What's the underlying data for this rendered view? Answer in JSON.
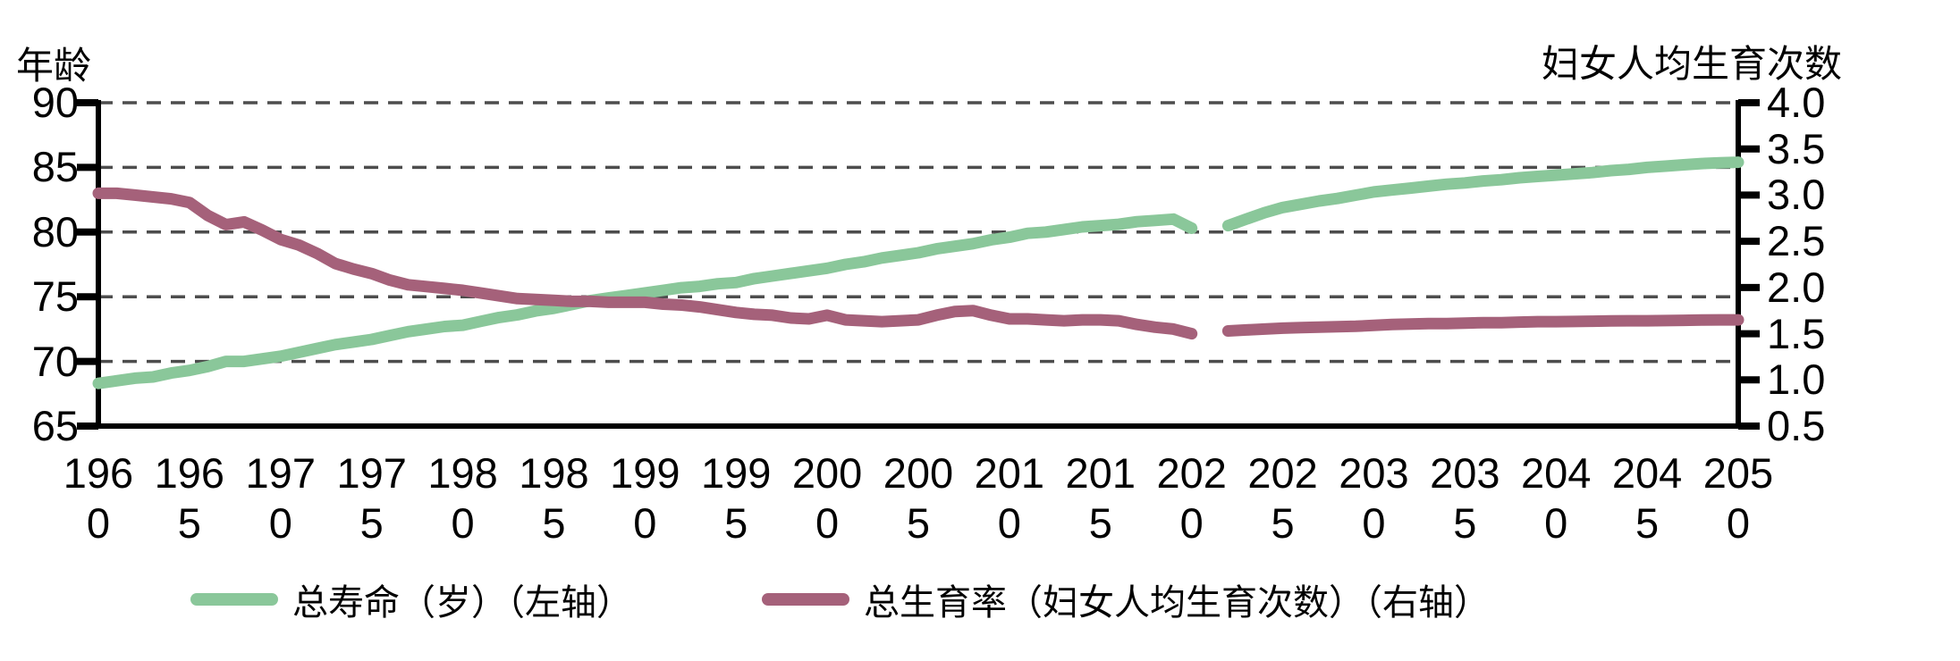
{
  "axes": {
    "left_title": "年龄",
    "right_title": "妇女人均生育次数",
    "left_tick_labels": [
      "90",
      "85",
      "80",
      "75",
      "70",
      "65"
    ],
    "right_tick_labels": [
      "4.0",
      "3.5",
      "3.0",
      "2.5",
      "2.0",
      "1.5",
      "1.0",
      "0.5"
    ],
    "x_tick_labels": [
      "1960",
      "1965",
      "1970",
      "1975",
      "1980",
      "1985",
      "1990",
      "1995",
      "2000",
      "2005",
      "2010",
      "2015",
      "2020",
      "2025",
      "2030",
      "2035",
      "2040",
      "2045",
      "2050"
    ]
  },
  "legend": {
    "items": [
      {
        "id": "life-expectancy",
        "label": "总寿命（岁）（左轴）",
        "color": "#8AC79A"
      },
      {
        "id": "fertility-rate",
        "label": "总生育率（妇女人均生育次数）（右轴）",
        "color": "#A5617A"
      }
    ]
  },
  "colors": {
    "green_series": "#8AC79A",
    "maroon_series": "#A5617A",
    "gridline": "#4d4d4d",
    "axis": "#000000",
    "text": "#000000"
  },
  "chart_data": {
    "type": "line",
    "x_axis": {
      "range": [
        1960,
        2050
      ],
      "tick_step": 5,
      "tick_labels_wrapped": true
    },
    "left_axis": {
      "label": "年龄",
      "range": [
        65,
        90
      ],
      "ticks": [
        90,
        85,
        80,
        75,
        70,
        65
      ]
    },
    "right_axis": {
      "label": "妇女人均生育次数",
      "range": [
        0.5,
        4.0
      ],
      "ticks": [
        4.0,
        3.5,
        3.0,
        2.5,
        2.0,
        1.5,
        1.0,
        0.5
      ]
    },
    "grid": "horizontal-dashed",
    "legend_position": "bottom",
    "gap_years": [
      2021
    ],
    "x": [
      1960,
      1961,
      1962,
      1963,
      1964,
      1965,
      1966,
      1967,
      1968,
      1969,
      1970,
      1971,
      1972,
      1973,
      1974,
      1975,
      1976,
      1977,
      1978,
      1979,
      1980,
      1981,
      1982,
      1983,
      1984,
      1985,
      1986,
      1987,
      1988,
      1989,
      1990,
      1991,
      1992,
      1993,
      1994,
      1995,
      1996,
      1997,
      1998,
      1999,
      2000,
      2001,
      2002,
      2003,
      2004,
      2005,
      2006,
      2007,
      2008,
      2009,
      2010,
      2011,
      2012,
      2013,
      2014,
      2015,
      2016,
      2017,
      2018,
      2019,
      2020,
      2021,
      2022,
      2023,
      2024,
      2025,
      2026,
      2027,
      2028,
      2029,
      2030,
      2031,
      2032,
      2033,
      2034,
      2035,
      2036,
      2037,
      2038,
      2039,
      2040,
      2041,
      2042,
      2043,
      2044,
      2045,
      2046,
      2047,
      2048,
      2049,
      2050
    ],
    "series": [
      {
        "name": "总寿命（岁）（左轴）",
        "axis": "left",
        "color": "#8AC79A",
        "values": [
          68.3,
          68.5,
          68.7,
          68.8,
          69.1,
          69.3,
          69.6,
          70.0,
          70.0,
          70.2,
          70.4,
          70.7,
          71.0,
          71.3,
          71.5,
          71.7,
          72.0,
          72.3,
          72.5,
          72.7,
          72.8,
          73.1,
          73.4,
          73.6,
          73.9,
          74.1,
          74.4,
          74.7,
          74.9,
          75.1,
          75.3,
          75.5,
          75.7,
          75.8,
          76.0,
          76.1,
          76.4,
          76.6,
          76.8,
          77.0,
          77.2,
          77.5,
          77.7,
          78.0,
          78.2,
          78.4,
          78.7,
          78.9,
          79.1,
          79.4,
          79.6,
          79.9,
          80.0,
          80.2,
          80.4,
          80.5,
          80.6,
          80.8,
          80.9,
          81.0,
          80.3,
          null,
          80.5,
          81.0,
          81.5,
          81.9,
          82.15,
          82.4,
          82.6,
          82.85,
          83.1,
          83.25,
          83.4,
          83.55,
          83.7,
          83.8,
          83.95,
          84.05,
          84.2,
          84.3,
          84.4,
          84.5,
          84.6,
          84.75,
          84.85,
          85.0,
          85.1,
          85.2,
          85.3,
          85.35,
          85.4
        ]
      },
      {
        "name": "总生育率（妇女人均生育次数）（右轴）",
        "axis": "right",
        "color": "#A5617A",
        "values": [
          3.02,
          3.02,
          3.0,
          2.98,
          2.96,
          2.92,
          2.78,
          2.68,
          2.71,
          2.62,
          2.52,
          2.46,
          2.37,
          2.26,
          2.2,
          2.15,
          2.08,
          2.03,
          2.01,
          1.99,
          1.97,
          1.94,
          1.91,
          1.88,
          1.87,
          1.86,
          1.85,
          1.85,
          1.84,
          1.84,
          1.84,
          1.82,
          1.81,
          1.79,
          1.76,
          1.73,
          1.71,
          1.7,
          1.67,
          1.66,
          1.7,
          1.65,
          1.64,
          1.63,
          1.64,
          1.65,
          1.7,
          1.74,
          1.75,
          1.7,
          1.66,
          1.66,
          1.65,
          1.64,
          1.65,
          1.65,
          1.64,
          1.6,
          1.57,
          1.55,
          1.5,
          null,
          1.53,
          1.54,
          1.55,
          1.56,
          1.565,
          1.57,
          1.575,
          1.58,
          1.59,
          1.6,
          1.605,
          1.61,
          1.61,
          1.615,
          1.62,
          1.62,
          1.625,
          1.63,
          1.63,
          1.632,
          1.635,
          1.638,
          1.64,
          1.64,
          1.642,
          1.645,
          1.648,
          1.65,
          1.65
        ]
      }
    ]
  }
}
